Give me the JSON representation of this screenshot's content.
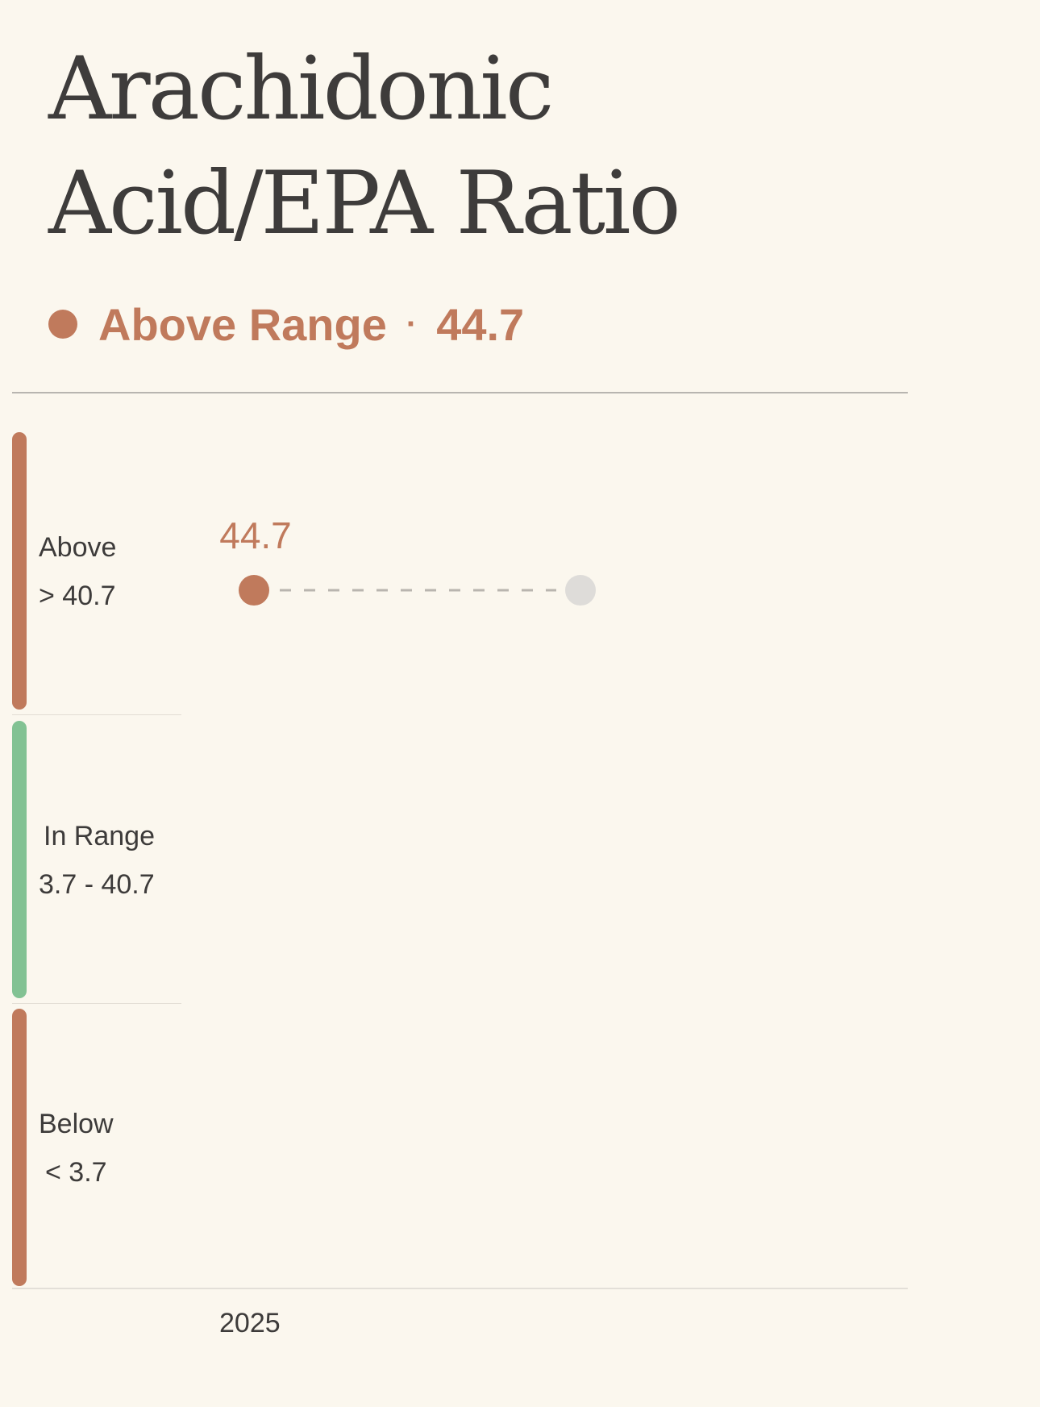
{
  "title": "Arachidonic Acid/EPA Ratio",
  "status": {
    "label": "Above Range",
    "separator": "·",
    "value": "44.7",
    "color": "#c07a5c"
  },
  "zones": {
    "above": {
      "name": "Above",
      "range": "> 40.7",
      "color": "#c07a5c"
    },
    "in_range": {
      "name": "In Range",
      "range": "3.7 - 40.7",
      "color": "#82c293"
    },
    "below": {
      "name": "Below",
      "range": "< 3.7",
      "color": "#c07a5c"
    }
  },
  "chart_data": {
    "type": "scatter",
    "x_labels": [
      "2025"
    ],
    "series": [
      {
        "values": [
          44.7
        ],
        "color": "#c07a5c"
      }
    ],
    "data_labels": [
      "44.7"
    ],
    "placeholder_point": {
      "color": "#dedcd9"
    },
    "connector": "dashed",
    "reference_ranges": {
      "below_max": 3.7,
      "above_min": 40.7
    }
  }
}
